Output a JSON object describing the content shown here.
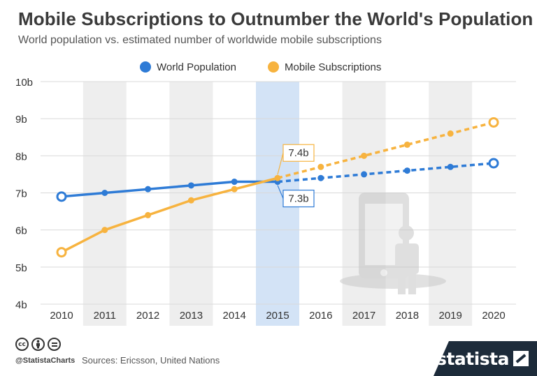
{
  "header": {
    "title": "Mobile Subscriptions to Outnumber the World's Population",
    "subtitle": "World population vs. estimated number of worldwide mobile subscriptions"
  },
  "chart_data": {
    "type": "line",
    "x": [
      "2010",
      "2011",
      "2012",
      "2013",
      "2014",
      "2015",
      "2016",
      "2017",
      "2018",
      "2019",
      "2020"
    ],
    "ylim": [
      4,
      10
    ],
    "yticks": [
      4,
      5,
      6,
      7,
      8,
      9,
      10
    ],
    "ytick_labels": [
      "4b",
      "5b",
      "6b",
      "7b",
      "8b",
      "9b",
      "10b"
    ],
    "highlight_year": "2015",
    "projection_start": "2015",
    "series": [
      {
        "name": "World Population",
        "color": "#2e7bd6",
        "values": [
          6.9,
          7.0,
          7.1,
          7.2,
          7.3,
          7.3,
          7.4,
          7.5,
          7.6,
          7.7,
          7.8
        ]
      },
      {
        "name": "Mobile Subscriptions",
        "color": "#f7b33f",
        "values": [
          5.4,
          6.0,
          6.4,
          6.8,
          7.1,
          7.4,
          7.7,
          8.0,
          8.3,
          8.6,
          8.9
        ]
      }
    ],
    "annotations": [
      {
        "year": "2015",
        "series": "Mobile Subscriptions",
        "text": "7.4b"
      },
      {
        "year": "2015",
        "series": "World Population",
        "text": "7.3b"
      }
    ],
    "legend_position": "top-center",
    "grid": true
  },
  "footer": {
    "cc_icons": [
      "cc",
      "by",
      "nd"
    ],
    "handle": "@StatistaCharts",
    "sources": "Sources: Ericsson, United Nations",
    "brand": "statista"
  }
}
